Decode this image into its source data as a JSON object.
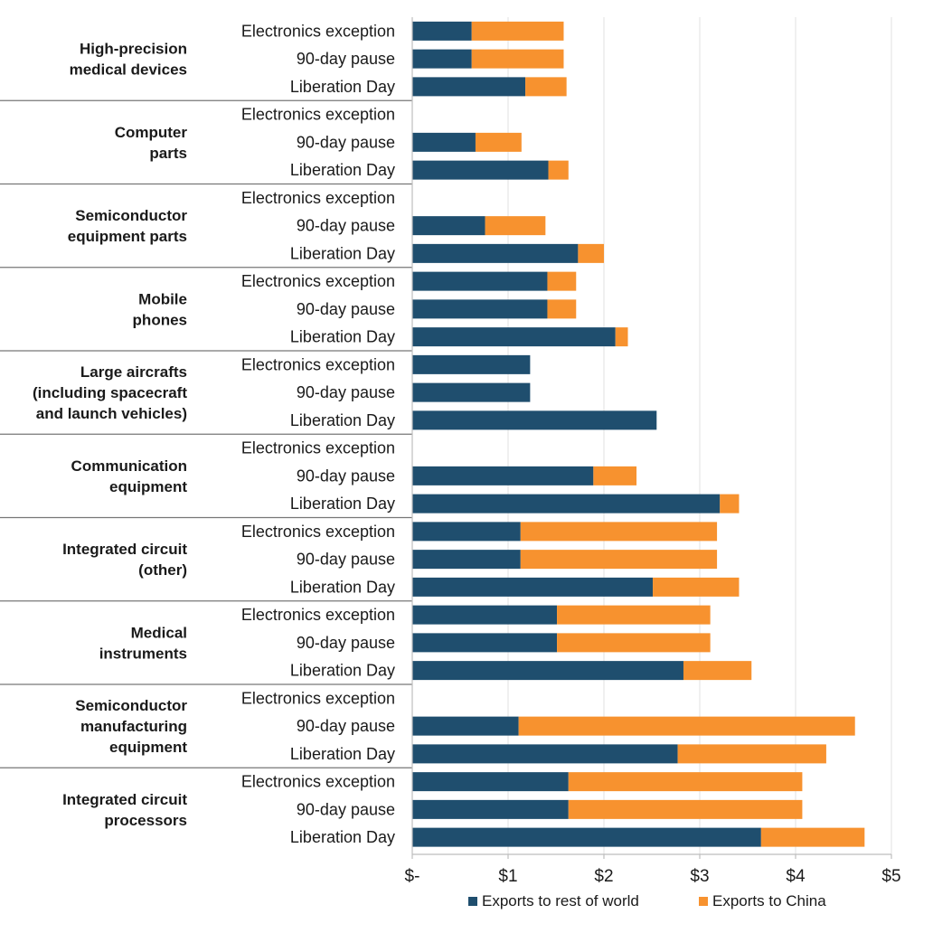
{
  "colors": {
    "rest_of_world": "#1f4e6e",
    "china": "#f7922f"
  },
  "chart_data": {
    "type": "bar",
    "orientation": "horizontal",
    "stacked": true,
    "xlim": [
      0,
      5
    ],
    "x_ticks": [
      {
        "value": 0,
        "label": "$-"
      },
      {
        "value": 1,
        "label": "$1"
      },
      {
        "value": 2,
        "label": "$2"
      },
      {
        "value": 3,
        "label": "$3"
      },
      {
        "value": 4,
        "label": "$4"
      },
      {
        "value": 5,
        "label": "$5"
      }
    ],
    "grid": true,
    "legend": {
      "placement": "bottom",
      "entries": [
        {
          "key": "rest_of_world",
          "label": "Exports to rest of world"
        },
        {
          "key": "china",
          "label": "Exports to China"
        }
      ]
    },
    "groups": [
      {
        "label": [
          "High-precision",
          "medical devices"
        ],
        "rows": [
          {
            "label": "Electronics exception",
            "rest_of_world": 0.62,
            "china": 0.96
          },
          {
            "label": "90-day pause",
            "rest_of_world": 0.62,
            "china": 0.96
          },
          {
            "label": "Liberation Day",
            "rest_of_world": 1.18,
            "china": 0.43
          }
        ]
      },
      {
        "label": [
          "Computer",
          "parts"
        ],
        "rows": [
          {
            "label": "Electronics exception",
            "rest_of_world": null,
            "china": null
          },
          {
            "label": "90-day pause",
            "rest_of_world": 0.66,
            "china": 0.48
          },
          {
            "label": "Liberation Day",
            "rest_of_world": 1.42,
            "china": 0.21
          }
        ]
      },
      {
        "label": [
          "Semiconductor",
          "equipment parts"
        ],
        "rows": [
          {
            "label": "Electronics exception",
            "rest_of_world": null,
            "china": null
          },
          {
            "label": "90-day pause",
            "rest_of_world": 0.76,
            "china": 0.63
          },
          {
            "label": "Liberation Day",
            "rest_of_world": 1.73,
            "china": 0.27
          }
        ]
      },
      {
        "label": [
          "Mobile",
          "phones"
        ],
        "rows": [
          {
            "label": "Electronics exception",
            "rest_of_world": 1.41,
            "china": 0.3
          },
          {
            "label": "90-day pause",
            "rest_of_world": 1.41,
            "china": 0.3
          },
          {
            "label": "Liberation Day",
            "rest_of_world": 2.12,
            "china": 0.13
          }
        ]
      },
      {
        "label": [
          "Large aircrafts",
          "(including spacecraft",
          "and launch vehicles)"
        ],
        "rows": [
          {
            "label": "Electronics exception",
            "rest_of_world": 1.23,
            "china": 0
          },
          {
            "label": "90-day pause",
            "rest_of_world": 1.23,
            "china": 0
          },
          {
            "label": "Liberation Day",
            "rest_of_world": 2.55,
            "china": 0
          }
        ]
      },
      {
        "label": [
          "Communication",
          "equipment"
        ],
        "rows": [
          {
            "label": "Electronics exception",
            "rest_of_world": null,
            "china": null
          },
          {
            "label": "90-day pause",
            "rest_of_world": 1.89,
            "china": 0.45
          },
          {
            "label": "Liberation Day",
            "rest_of_world": 3.21,
            "china": 0.2
          }
        ]
      },
      {
        "label": [
          "Integrated circuit",
          "(other)"
        ],
        "rows": [
          {
            "label": "Electronics exception",
            "rest_of_world": 1.13,
            "china": 2.05
          },
          {
            "label": "90-day pause",
            "rest_of_world": 1.13,
            "china": 2.05
          },
          {
            "label": "Liberation Day",
            "rest_of_world": 2.51,
            "china": 0.9
          }
        ]
      },
      {
        "label": [
          "Medical",
          "instruments"
        ],
        "rows": [
          {
            "label": "Electronics exception",
            "rest_of_world": 1.51,
            "china": 1.6
          },
          {
            "label": "90-day pause",
            "rest_of_world": 1.51,
            "china": 1.6
          },
          {
            "label": "Liberation Day",
            "rest_of_world": 2.83,
            "china": 0.71
          }
        ]
      },
      {
        "label": [
          "Semiconductor",
          "manufacturing",
          "equipment"
        ],
        "rows": [
          {
            "label": "Electronics exception",
            "rest_of_world": null,
            "china": null
          },
          {
            "label": "90-day pause",
            "rest_of_world": 1.11,
            "china": 3.51
          },
          {
            "label": "Liberation Day",
            "rest_of_world": 2.77,
            "china": 1.55
          }
        ]
      },
      {
        "label": [
          "Integrated circuit",
          "processors"
        ],
        "rows": [
          {
            "label": "Electronics exception",
            "rest_of_world": 1.63,
            "china": 2.44
          },
          {
            "label": "90-day pause",
            "rest_of_world": 1.63,
            "china": 2.44
          },
          {
            "label": "Liberation Day",
            "rest_of_world": 3.64,
            "china": 1.08
          }
        ]
      }
    ]
  }
}
